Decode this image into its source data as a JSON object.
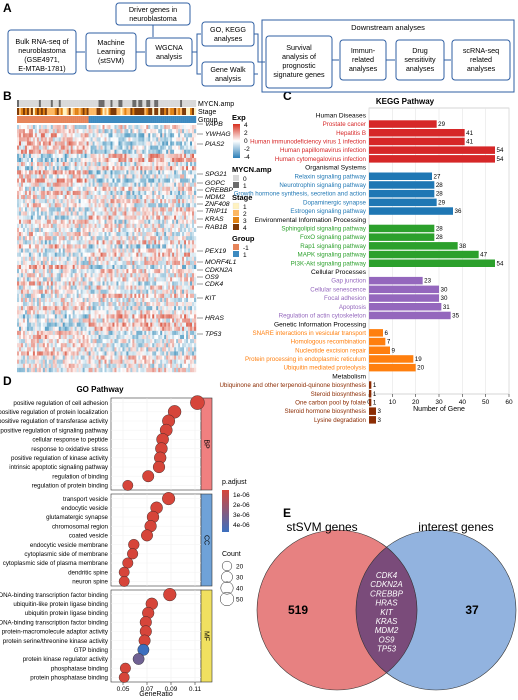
{
  "panel_letters": [
    "A",
    "B",
    "C",
    "D",
    "E"
  ],
  "panelA": {
    "bulk": [
      "Bulk RNA-seq of",
      "neuroblastoma",
      "(GSE4971,",
      "E-MTAB-1781)"
    ],
    "ml": [
      "Machine",
      "Learning",
      "(stSVM)"
    ],
    "driver": [
      "Driver genes in",
      "neuroblastoma"
    ],
    "wgcna": [
      "WGCNA",
      "analysis"
    ],
    "gokegg": [
      "GO, KEGG",
      "analyses"
    ],
    "genewalk": [
      "Gene Walk",
      "analysis"
    ],
    "downstream": "Downstream analyses",
    "survival": [
      "Survival",
      "analysis of",
      "prognostic",
      "signature genes"
    ],
    "immune": [
      "Immun-",
      "related",
      "analyses"
    ],
    "drug": [
      "Drug",
      "sensitivity",
      "analyses"
    ],
    "scrna": [
      "scRNA-seq",
      "related",
      "analyses"
    ]
  },
  "panelB": {
    "track_labels": [
      "MYCN.amp",
      "Stage",
      "Group"
    ],
    "genes": [
      "VAPB",
      "YWHAG",
      "PIAS2",
      "SPG21",
      "GOPC",
      "CREBBP",
      "MDM2",
      "ZNF408",
      "TRIP11",
      "KRAS",
      "RAB1B",
      "PEX19",
      "MORF4L1",
      "CDKN2A",
      "OS9",
      "CDK4",
      "KIT",
      "HRAS",
      "TP53"
    ],
    "legend": {
      "exp_title": "Exp",
      "exp_ticks": [
        "4",
        "2",
        "0",
        "-2",
        "-4"
      ],
      "mycn_title": "MYCN.amp",
      "mycn_items": [
        "0",
        "1"
      ],
      "stage_title": "Stage",
      "stage_items": [
        "1",
        "2",
        "3",
        "4"
      ],
      "group_title": "Group",
      "group_items": [
        "-1",
        "1"
      ]
    },
    "colors": {
      "mycn0": "#d9d9d9",
      "mycn1": "#6b6b6b",
      "high": "#d7301f",
      "low": "#2c7fb8",
      "g1": "#e6845a",
      "g2": "#3d8ac0",
      "stage1": "#fff2c0",
      "stage2": "#fdb863",
      "stage3": "#e08214",
      "stage4": "#7f3b08"
    }
  },
  "chart_data": [
    {
      "type": "bar",
      "title": "KEGG Pathway",
      "xlabel": "Number of Gene",
      "xlim": [
        0,
        60
      ],
      "xticks": [
        "0",
        "10",
        "20",
        "30",
        "40",
        "50",
        "60"
      ],
      "groups": [
        {
          "name": "Human Diseases",
          "color": "#d62728",
          "categories": [
            "Prostate cancer",
            "Hepatitis B",
            "Human immunodeficiency virus 1 infection",
            "Human papillomavirus infection",
            "Human cytomegalovirus infection"
          ],
          "values": [
            29,
            41,
            41,
            54,
            54
          ]
        },
        {
          "name": "Organismal Systems",
          "color": "#1f77b4",
          "categories": [
            "Relaxin signaling pathway",
            "Neurotrophin signaling pathway",
            "Growth hormone synthesis, secretion and action",
            "Dopaminergic synapse",
            "Estrogen signaling pathway"
          ],
          "values": [
            27,
            28,
            28,
            29,
            36
          ]
        },
        {
          "name": "Environmental Information Processing",
          "color": "#2ca02c",
          "categories": [
            "Sphingolipid signaling pathway",
            "FoxO signaling pathway",
            "Rap1 signaling pathway",
            "MAPK signaling pathway",
            "PI3K-Akt signaling pathway"
          ],
          "values": [
            28,
            28,
            38,
            47,
            54
          ]
        },
        {
          "name": "Cellular Processes",
          "color": "#9467bd",
          "categories": [
            "Gap junction",
            "Cellular senescence",
            "Focal adhesion",
            "Apoptosis",
            "Regulation of actin cytoskeleton"
          ],
          "values": [
            23,
            30,
            30,
            31,
            35
          ]
        },
        {
          "name": "Genetic Information Processing",
          "color": "#ff7f0e",
          "categories": [
            "SNARE interactions in vesicular transport",
            "Homologous recombination",
            "Nucleotide excision repair",
            "Protein processing in endoplasmic reticulum",
            "Ubiquitin mediated proteolysis"
          ],
          "values": [
            6,
            7,
            9,
            19,
            20
          ]
        },
        {
          "name": "Metabolism",
          "color": "#8c2d04",
          "categories": [
            "Ubiquinone and other terpenoid-quinone biosynthesis",
            "Steroid biosynthesis",
            "One carbon pool by folate",
            "Steroid hormone biosynthesis",
            "Lysine degradation"
          ],
          "values": [
            1,
            1,
            1,
            3,
            3
          ]
        }
      ]
    },
    {
      "type": "scatter",
      "title": "GO Pathway",
      "xlabel": "GeneRatio",
      "xlim": [
        0.04,
        0.115
      ],
      "xticks": [
        "0.05",
        "0.07",
        "0.09",
        "0.11"
      ],
      "size_legend": {
        "title": "Count",
        "values": [
          "20",
          "30",
          "40",
          "50"
        ]
      },
      "color_legend": {
        "title": "p.adjust",
        "values": [
          "1e-06",
          "2e-06",
          "3e-06",
          "4e-06"
        ]
      },
      "facets": [
        {
          "name": "BP",
          "terms": [
            "positive regulation of cell adhesion",
            "positive regulation of protein localization",
            "positive regulation of transferase activity",
            "positive regulation of signaling pathway",
            "cellular response to peptide",
            "response to oxidative stress",
            "positive regulation of kinase activity",
            "intrinsic apoptotic signaling pathway",
            "regulation of binding",
            "regulation of protein binding"
          ],
          "x": [
            0.112,
            0.093,
            0.088,
            0.086,
            0.083,
            0.082,
            0.081,
            0.08,
            0.071,
            0.054
          ],
          "count": [
            55,
            44,
            40,
            38,
            37,
            36,
            35,
            34,
            32,
            24
          ],
          "padj": [
            1e-06,
            1e-06,
            1e-06,
            1e-06,
            1e-06,
            1e-06,
            1e-06,
            1e-06,
            1e-06,
            1e-06
          ]
        },
        {
          "name": "CC",
          "terms": [
            "transport vesicle",
            "endocytic vesicle",
            "glutamatergic synapse",
            "chromosomal region",
            "coated vesicle",
            "endocytic vesicle membrane",
            "cytoplasmic side of membrane",
            "cytoplasmic side of plasma membrane",
            "dendritic spine",
            "neuron spine"
          ],
          "x": [
            0.088,
            0.078,
            0.075,
            0.073,
            0.07,
            0.059,
            0.058,
            0.054,
            0.051,
            0.051
          ],
          "count": [
            41,
            36,
            35,
            34,
            32,
            27,
            26,
            25,
            24,
            24
          ],
          "padj": [
            1e-06,
            1e-06,
            1e-06,
            1e-06,
            1e-06,
            1e-06,
            1e-06,
            1e-06,
            1e-06,
            1e-06
          ]
        },
        {
          "name": "MF",
          "terms": [
            "DNA-binding transcription factor binding",
            "ubiquitin-like protein ligase binding",
            "ubiquitin protein ligase binding",
            "RNA polymerase II-specific DNA-binding transcription factor binding",
            "protein-macromolecule adaptor activity",
            "protein serine/threonine kinase activity",
            "GTP binding",
            "protein kinase regulator activity",
            "phosphatase binding",
            "protein phosphatase binding"
          ],
          "x": [
            0.089,
            0.074,
            0.071,
            0.069,
            0.069,
            0.068,
            0.067,
            0.063,
            0.052,
            0.051
          ],
          "count": [
            42,
            35,
            34,
            33,
            33,
            32,
            31,
            30,
            25,
            24
          ],
          "padj": [
            1e-06,
            1e-06,
            1e-06,
            1e-06,
            1e-06,
            1e-06,
            4e-06,
            3e-06,
            1e-06,
            1e-06
          ]
        }
      ]
    },
    {
      "type": "venn",
      "sets": [
        {
          "name": "stSVM genes",
          "only": 519,
          "color": "#e36b6b"
        },
        {
          "name": "interest genes",
          "only": 37,
          "color": "#7fa6d9"
        }
      ],
      "intersection": [
        "CDK4",
        "CDKN2A",
        "CREBBP",
        "HRAS",
        "KIT",
        "KRAS",
        "MDM2",
        "OS9",
        "TP53"
      ]
    }
  ]
}
